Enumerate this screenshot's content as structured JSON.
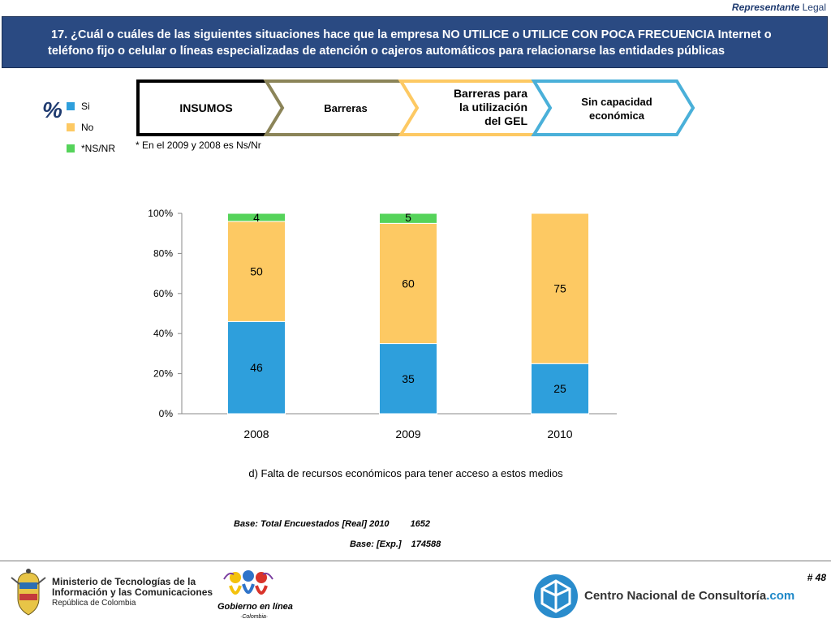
{
  "header": {
    "top_label_italic": "Representante",
    "top_label_rest": " Legal",
    "question_line1": "17. ¿Cuál o cuáles de las siguientes situaciones hace que la empresa NO UTILICE o UTILICE CON POCA FRECUENCIA Internet o",
    "question_line2": "teléfono fijo o celular o líneas especializadas de atención o cajeros automáticos para relacionarse las entidades públicas"
  },
  "percent_sign": "%",
  "legend": {
    "items": [
      {
        "label": "Si",
        "color": "#2e9fdc"
      },
      {
        "label": "No",
        "color": "#fdc963"
      },
      {
        "label": "*NS/NR",
        "color": "#55d35a"
      }
    ]
  },
  "footnote": "* En el 2009 y 2008 es Ns/Nr",
  "stages": [
    {
      "line1": "INSUMOS",
      "line2": "",
      "line3": "",
      "border": "#000000"
    },
    {
      "line1": "Barreras",
      "line2": "",
      "line3": "",
      "border": "#8b8458"
    },
    {
      "line1": "Barreras para",
      "line2": "la utilización",
      "line3": "del GEL",
      "border": "#fdc963"
    },
    {
      "line1": "Sin capacidad",
      "line2": "económica",
      "line3": "",
      "border": "#4ab0d9"
    }
  ],
  "chart_data": {
    "type": "bar",
    "stacked": true,
    "categories": [
      "2008",
      "2009",
      "2010"
    ],
    "series": [
      {
        "name": "Si",
        "values": [
          46,
          35,
          25
        ],
        "color": "#2e9fdc"
      },
      {
        "name": "No",
        "values": [
          50,
          60,
          75
        ],
        "color": "#fdc963"
      },
      {
        "name": "*NS/NR",
        "values": [
          4,
          5,
          0
        ],
        "color": "#55d35a"
      }
    ],
    "data_labels": [
      [
        "46",
        "50",
        "4"
      ],
      [
        "35",
        "60",
        "5"
      ],
      [
        "25",
        "75",
        ""
      ]
    ],
    "ylim": [
      0,
      100
    ],
    "yticks": [
      0,
      20,
      40,
      60,
      80,
      100
    ],
    "ytick_labels": [
      "0%",
      "20%",
      "40%",
      "60%",
      "80%",
      "100%"
    ],
    "xlabel": "",
    "ylabel": "",
    "grid": false,
    "legend_position": "top-left"
  },
  "caption": "d) Falta de recursos económicos para tener acceso a estos medios",
  "base": {
    "line1_label": "Base: Total Encuestados [Real] 2010",
    "line1_value": "1652",
    "line2_label": "Base: [Exp.]",
    "line2_value": "174588"
  },
  "page_number": "# 48",
  "footer": {
    "ministry_line1": "Ministerio de Tecnologías de la",
    "ministry_line2": "Información y las Comunicaciones",
    "ministry_line3": "República de Colombia",
    "gel_name": "Gobierno en línea",
    "gel_country": "·Colombia·",
    "cnc_name": "Centro Nacional de Consultoría",
    "cnc_suffix": ".com"
  }
}
